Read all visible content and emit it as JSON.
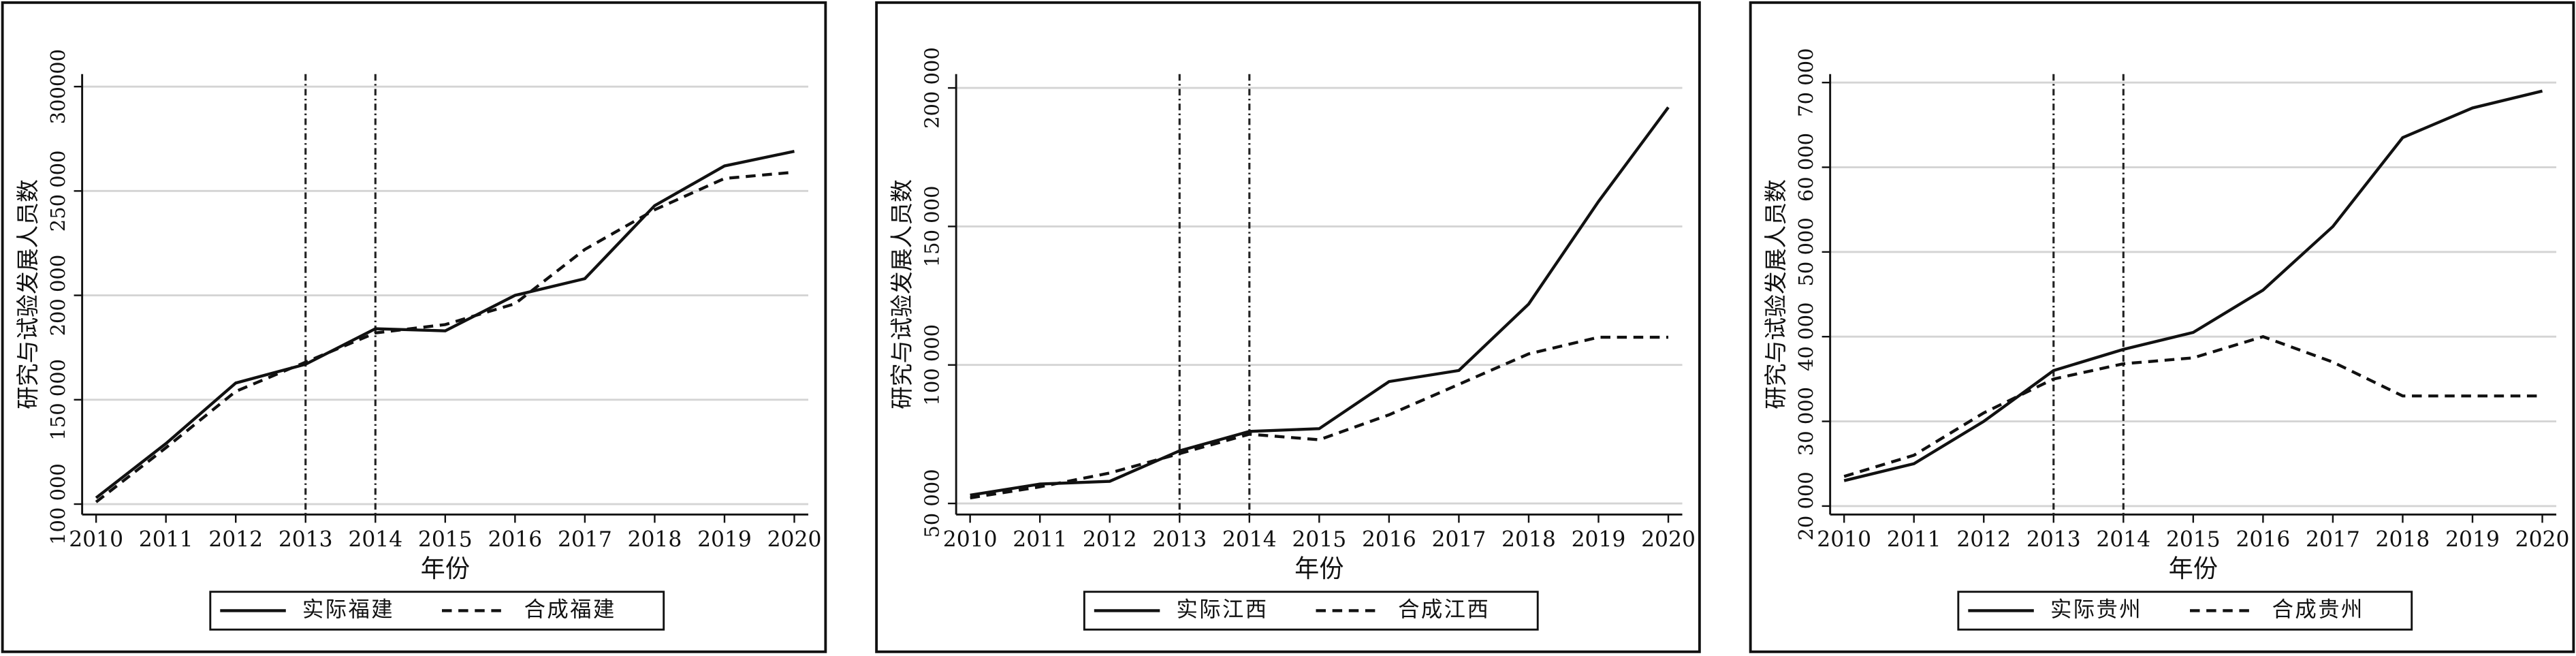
{
  "chart_data": [
    {
      "type": "line",
      "x_label": "年份",
      "y_label": "研究与试验发展人员数",
      "x": [
        2010,
        2011,
        2012,
        2013,
        2014,
        2015,
        2016,
        2017,
        2018,
        2019,
        2020
      ],
      "series": [
        {
          "name": "实际福建",
          "color": "#111111",
          "dash": "solid",
          "values": [
            103000,
            129000,
            158000,
            167000,
            184000,
            183000,
            200000,
            208000,
            243000,
            262000,
            269000
          ]
        },
        {
          "name": "合成福建",
          "color": "#111111",
          "dash": "dashed",
          "values": [
            101000,
            127000,
            154000,
            168000,
            182000,
            186000,
            196000,
            222000,
            241000,
            256000,
            259000
          ]
        }
      ],
      "xlim": [
        2009.8,
        2020.2
      ],
      "xticks": [
        2010,
        2011,
        2012,
        2013,
        2014,
        2015,
        2016,
        2017,
        2018,
        2019,
        2020
      ],
      "ylim": [
        95000,
        306000
      ],
      "yticks": [
        {
          "value": 100000,
          "label": "100 000"
        },
        {
          "value": 150000,
          "label": "150 000"
        },
        {
          "value": 200000,
          "label": "200 000"
        },
        {
          "value": 250000,
          "label": "250 000"
        },
        300000
      ],
      "vlines": [
        2013,
        2014
      ],
      "grid": true
    },
    {
      "type": "line",
      "x_label": "年份",
      "y_label": "研究与试验发展人员数",
      "x": [
        2010,
        2011,
        2012,
        2013,
        2014,
        2015,
        2016,
        2017,
        2018,
        2019,
        2020
      ],
      "series": [
        {
          "name": "实际江西",
          "color": "#111111",
          "dash": "solid",
          "values": [
            53000,
            57000,
            58000,
            69000,
            76000,
            77000,
            94000,
            98000,
            122000,
            159000,
            193000
          ]
        },
        {
          "name": "合成江西",
          "color": "#111111",
          "dash": "dashed",
          "values": [
            52000,
            56000,
            61000,
            68000,
            75000,
            73000,
            82000,
            93000,
            104000,
            110000,
            110000
          ]
        }
      ],
      "xlim": [
        2009.8,
        2020.2
      ],
      "xticks": [
        2010,
        2011,
        2012,
        2013,
        2014,
        2015,
        2016,
        2017,
        2018,
        2019,
        2020
      ],
      "ylim": [
        46000,
        205000
      ],
      "yticks": [
        {
          "value": 50000,
          "label": "50 000"
        },
        {
          "value": 100000,
          "label": "100 000"
        },
        {
          "value": 150000,
          "label": "150 000"
        },
        {
          "value": 200000,
          "label": "200 000"
        }
      ],
      "vlines": [
        2013,
        2014
      ],
      "grid": true
    },
    {
      "type": "line",
      "x_label": "年份",
      "y_label": "研究与试验发展人员数",
      "x": [
        2010,
        2011,
        2012,
        2013,
        2014,
        2015,
        2016,
        2017,
        2018,
        2019,
        2020
      ],
      "series": [
        {
          "name": "实际贵州",
          "color": "#111111",
          "dash": "solid",
          "values": [
            23000,
            25000,
            30000,
            36000,
            38500,
            40500,
            45500,
            53000,
            63500,
            67000,
            69000
          ]
        },
        {
          "name": "合成贵州",
          "color": "#111111",
          "dash": "dashed",
          "values": [
            23500,
            26000,
            31000,
            35000,
            36800,
            37500,
            40000,
            37000,
            33000,
            33000,
            33000
          ]
        }
      ],
      "xlim": [
        2009.8,
        2020.2
      ],
      "xticks": [
        2010,
        2011,
        2012,
        2013,
        2014,
        2015,
        2016,
        2017,
        2018,
        2019,
        2020
      ],
      "ylim": [
        19000,
        71000
      ],
      "yticks": [
        {
          "value": 20000,
          "label": "20 000"
        },
        {
          "value": 30000,
          "label": "30 000"
        },
        {
          "value": 40000,
          "label": "40 000"
        },
        {
          "value": 50000,
          "label": "50 000"
        },
        {
          "value": 60000,
          "label": "60 000"
        },
        {
          "value": 70000,
          "label": "70 000"
        }
      ],
      "vlines": [
        2013,
        2014
      ],
      "grid": true
    }
  ]
}
